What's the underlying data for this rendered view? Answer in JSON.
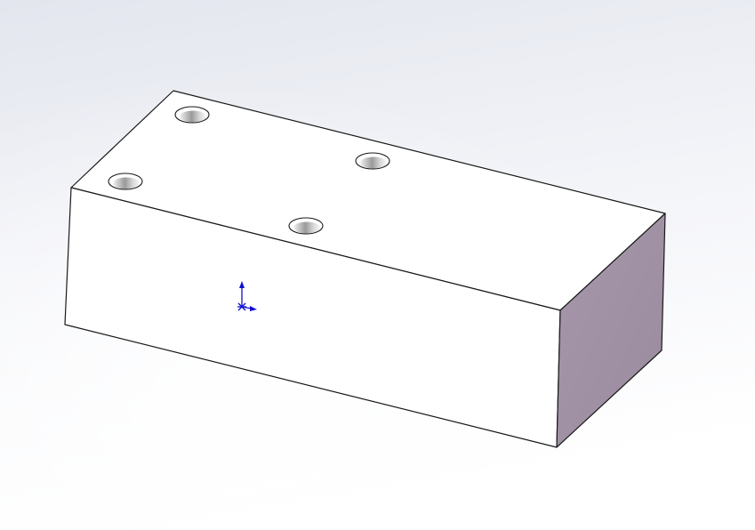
{
  "viewport": {
    "background_top": "#e6e8f0",
    "background_bottom": "#ffffff"
  },
  "part": {
    "type": "rectangular-block",
    "hole_count": 4,
    "top_face_color": "#ffffff",
    "front_face_color": "#ffffff",
    "side_face_color": "#a293a6",
    "edge_color": "#1a1a1a",
    "hole_count_label": "4"
  },
  "triad": {
    "icon": "coordinate-triad-icon",
    "color": "#1010d0"
  }
}
